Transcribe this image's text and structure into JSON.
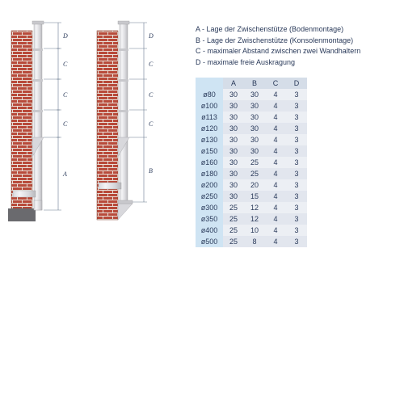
{
  "legend": {
    "A": "A - Lage der Zwischenstütze (Bodenmontage)",
    "B": "B - Lage der Zwischenstütze (Konsolenmontage)",
    "C": "C - maximaler Abstand zwischen zwei Wandhaltern",
    "D": "D - maximale freie Auskragung"
  },
  "table": {
    "columns": [
      "A",
      "B",
      "C",
      "D"
    ],
    "diam_prefix": "ø",
    "rows": [
      {
        "d": "80",
        "v": [
          "30",
          "30",
          "4",
          "3"
        ]
      },
      {
        "d": "100",
        "v": [
          "30",
          "30",
          "4",
          "3"
        ]
      },
      {
        "d": "113",
        "v": [
          "30",
          "30",
          "4",
          "3"
        ]
      },
      {
        "d": "120",
        "v": [
          "30",
          "30",
          "4",
          "3"
        ]
      },
      {
        "d": "130",
        "v": [
          "30",
          "30",
          "4",
          "3"
        ]
      },
      {
        "d": "150",
        "v": [
          "30",
          "30",
          "4",
          "3"
        ]
      },
      {
        "d": "160",
        "v": [
          "30",
          "25",
          "4",
          "3"
        ]
      },
      {
        "d": "180",
        "v": [
          "30",
          "25",
          "4",
          "3"
        ]
      },
      {
        "d": "200",
        "v": [
          "30",
          "20",
          "4",
          "3"
        ]
      },
      {
        "d": "250",
        "v": [
          "30",
          "15",
          "4",
          "3"
        ]
      },
      {
        "d": "300",
        "v": [
          "25",
          "12",
          "4",
          "3"
        ]
      },
      {
        "d": "350",
        "v": [
          "25",
          "12",
          "4",
          "3"
        ]
      },
      {
        "d": "400",
        "v": [
          "25",
          "10",
          "4",
          "3"
        ]
      },
      {
        "d": "500",
        "v": [
          "25",
          "8",
          "4",
          "3"
        ]
      }
    ]
  },
  "diagram": {
    "labels": [
      "A",
      "B",
      "C",
      "D"
    ],
    "colors": {
      "brick": "#b84a3a",
      "mortar": "#e8e0d8",
      "pipe_light": "#e8e8ea",
      "pipe_dark": "#b8b8bc",
      "dim_line": "#6a7a90",
      "bracket": "#c8c8cc",
      "base": "#6a6a6e"
    }
  }
}
